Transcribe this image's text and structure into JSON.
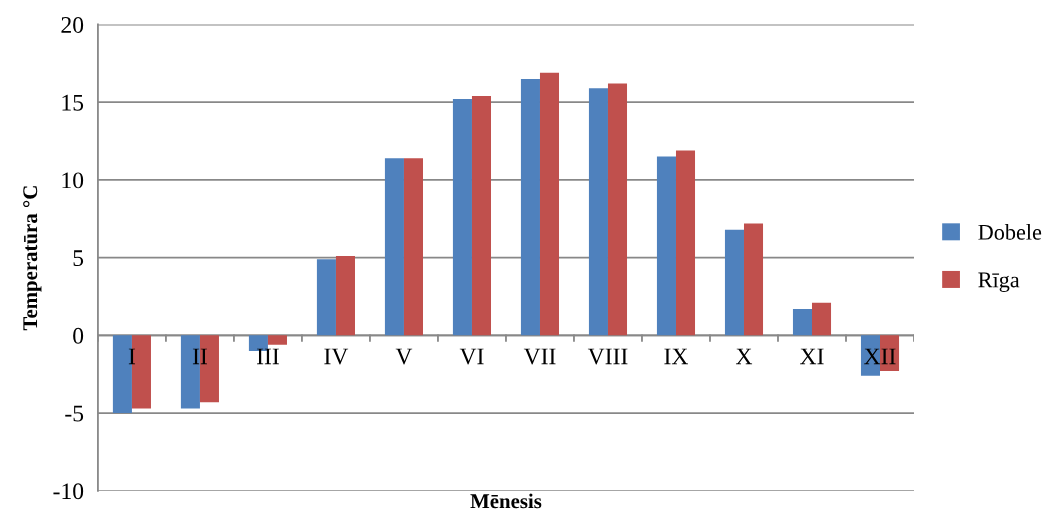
{
  "chart_data": {
    "type": "bar",
    "xlabel": "Mēnesis",
    "ylabel": "Temperatūra °C",
    "categories": [
      "I",
      "II",
      "III",
      "IV",
      "V",
      "VI",
      "VII",
      "VIII",
      "IX",
      "X",
      "XI",
      "XII"
    ],
    "series": [
      {
        "name": "Dobele",
        "color": "#4f81bd",
        "values": [
          -5.0,
          -4.7,
          -1.0,
          4.9,
          11.4,
          15.2,
          16.5,
          15.9,
          11.5,
          6.8,
          1.7,
          -2.6
        ]
      },
      {
        "name": "Rīga",
        "color": "#c0504d",
        "values": [
          -4.7,
          -4.3,
          -0.6,
          5.1,
          11.4,
          15.4,
          16.9,
          16.2,
          11.9,
          7.2,
          2.1,
          -2.3
        ]
      }
    ],
    "ylim": [
      -10,
      20
    ],
    "yticks": [
      -10,
      -5,
      0,
      5,
      10,
      15,
      20
    ],
    "grid": "y",
    "legend": "right"
  }
}
